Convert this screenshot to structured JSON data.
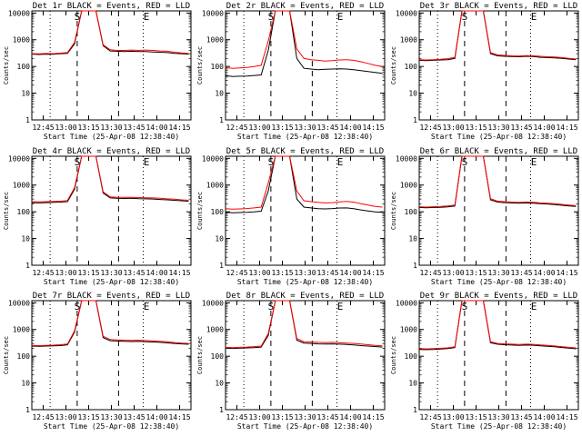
{
  "chart_data": [
    {
      "type": "line",
      "title": "Det 1r BLACK = Events, RED = LLD",
      "xlabel": "Start Time (25-Apr-08 12:38:40)",
      "ylabel": "Counts/sec",
      "scale_y": "log",
      "ylim": [
        1,
        12000
      ],
      "yticks": [
        "1",
        "10",
        "100",
        "1000",
        "10000"
      ],
      "xticks": [
        "12:45",
        "13:00",
        "13:15",
        "13:30",
        "13:45",
        "14:00",
        "14:15"
      ],
      "markers": [
        "S",
        "E"
      ],
      "series": [
        {
          "color": "#000000",
          "values": [
            290,
            280,
            290,
            285,
            300,
            310,
            700,
            12000,
            12000,
            12000,
            600,
            380,
            370,
            360,
            370,
            360,
            360,
            350,
            340,
            330,
            310,
            300,
            290
          ]
        },
        {
          "color": "#ff0000",
          "values": [
            300,
            295,
            305,
            300,
            315,
            330,
            800,
            12000,
            12000,
            12000,
            650,
            420,
            400,
            400,
            410,
            400,
            410,
            400,
            380,
            370,
            340,
            320,
            305
          ]
        }
      ]
    },
    {
      "type": "line",
      "title": "Det 2r BLACK = Events, RED = LLD",
      "xlabel": "Start Time (25-Apr-08 12:38:40)",
      "ylabel": "Counts/sec",
      "scale_y": "log",
      "ylim": [
        1,
        12000
      ],
      "yticks": [
        "1",
        "10",
        "100",
        "1000",
        "10000"
      ],
      "xticks": [
        "12:45",
        "13:00",
        "13:15",
        "13:30",
        "13:45",
        "14:00",
        "14:15"
      ],
      "markers": [
        "S",
        "E"
      ],
      "series": [
        {
          "color": "#000000",
          "values": [
            45,
            42,
            43,
            44,
            46,
            48,
            400,
            12000,
            12000,
            12000,
            200,
            85,
            80,
            75,
            78,
            80,
            82,
            80,
            75,
            70,
            65,
            60,
            55
          ]
        },
        {
          "color": "#ff0000",
          "values": [
            90,
            85,
            88,
            92,
            100,
            110,
            900,
            12000,
            12000,
            12000,
            450,
            200,
            180,
            170,
            160,
            165,
            175,
            180,
            170,
            150,
            130,
            110,
            100
          ]
        }
      ]
    },
    {
      "type": "line",
      "title": "Det 3r BLACK = Events, RED = LLD",
      "xlabel": "Start Time (25-Apr-08 12:38:40)",
      "ylabel": "Counts/sec",
      "scale_y": "log",
      "ylim": [
        1,
        12000
      ],
      "yticks": [
        "1",
        "10",
        "100",
        "1000",
        "10000"
      ],
      "xticks": [
        "12:45",
        "13:00",
        "13:15",
        "13:30",
        "13:45",
        "14:00",
        "14:15"
      ],
      "markers": [
        "S",
        "E"
      ],
      "series": [
        {
          "color": "#000000",
          "values": [
            170,
            165,
            170,
            175,
            180,
            200,
            12000,
            12000,
            12000,
            12000,
            300,
            250,
            240,
            235,
            230,
            240,
            235,
            220,
            215,
            210,
            200,
            190,
            180
          ]
        },
        {
          "color": "#ff0000",
          "values": [
            180,
            175,
            180,
            185,
            195,
            220,
            12000,
            12000,
            12000,
            12000,
            330,
            270,
            260,
            250,
            245,
            255,
            250,
            240,
            230,
            225,
            215,
            200,
            190
          ]
        }
      ]
    },
    {
      "type": "line",
      "title": "Det 4r BLACK = Events, RED = LLD",
      "xlabel": "Start Time (25-Apr-08 12:38:40)",
      "ylabel": "Counts/sec",
      "scale_y": "log",
      "ylim": [
        1,
        12000
      ],
      "yticks": [
        "1",
        "10",
        "100",
        "1000",
        "10000"
      ],
      "xticks": [
        "12:45",
        "13:00",
        "13:15",
        "13:30",
        "13:45",
        "14:00",
        "14:15"
      ],
      "markers": [
        "S",
        "E"
      ],
      "series": [
        {
          "color": "#000000",
          "values": [
            220,
            215,
            220,
            225,
            230,
            240,
            700,
            12000,
            12000,
            12000,
            500,
            330,
            320,
            315,
            320,
            310,
            305,
            300,
            290,
            280,
            270,
            260,
            250
          ]
        },
        {
          "color": "#ff0000",
          "values": [
            240,
            235,
            240,
            245,
            250,
            265,
            800,
            12000,
            12000,
            12000,
            560,
            360,
            350,
            345,
            350,
            340,
            335,
            330,
            320,
            305,
            295,
            280,
            270
          ]
        }
      ]
    },
    {
      "type": "line",
      "title": "Det 5r BLACK = Events, RED = LLD",
      "xlabel": "Start Time (25-Apr-08 12:38:40)",
      "ylabel": "Counts/sec",
      "scale_y": "log",
      "ylim": [
        1,
        12000
      ],
      "yticks": [
        "1",
        "10",
        "100",
        "1000",
        "10000"
      ],
      "xticks": [
        "12:45",
        "13:00",
        "13:15",
        "13:30",
        "13:45",
        "14:00",
        "14:15"
      ],
      "markers": [
        "S",
        "E"
      ],
      "series": [
        {
          "color": "#000000",
          "values": [
            95,
            92,
            94,
            96,
            100,
            105,
            600,
            12000,
            12000,
            12000,
            300,
            150,
            140,
            130,
            128,
            132,
            138,
            140,
            130,
            118,
            108,
            100,
            95
          ]
        },
        {
          "color": "#ff0000",
          "values": [
            130,
            125,
            128,
            132,
            140,
            150,
            1200,
            12000,
            12000,
            12000,
            600,
            260,
            240,
            225,
            215,
            220,
            235,
            245,
            230,
            200,
            180,
            160,
            150
          ]
        }
      ]
    },
    {
      "type": "line",
      "title": "Det 6r BLACK = Events, RED = LLD",
      "xlabel": "Start Time (25-Apr-08 12:38:40)",
      "ylabel": "Counts/sec",
      "scale_y": "log",
      "ylim": [
        1,
        12000
      ],
      "yticks": [
        "1",
        "10",
        "100",
        "1000",
        "10000"
      ],
      "xticks": [
        "12:45",
        "13:00",
        "13:15",
        "13:30",
        "13:45",
        "14:00",
        "14:15"
      ],
      "markers": [
        "S",
        "E"
      ],
      "series": [
        {
          "color": "#000000",
          "values": [
            145,
            142,
            145,
            148,
            152,
            165,
            12000,
            12000,
            12000,
            12000,
            280,
            230,
            220,
            215,
            210,
            215,
            210,
            200,
            195,
            185,
            175,
            165,
            160
          ]
        },
        {
          "color": "#ff0000",
          "values": [
            155,
            150,
            155,
            158,
            165,
            180,
            12000,
            12000,
            12000,
            12000,
            310,
            250,
            240,
            230,
            225,
            232,
            228,
            215,
            210,
            200,
            190,
            180,
            170
          ]
        }
      ]
    },
    {
      "type": "line",
      "title": "Det 7r BLACK = Events, RED = LLD",
      "xlabel": "Start Time (25-Apr-08 12:38:40)",
      "ylabel": "Counts/sec",
      "scale_y": "log",
      "ylim": [
        1,
        12000
      ],
      "yticks": [
        "1",
        "10",
        "100",
        "1000",
        "10000"
      ],
      "xticks": [
        "12:45",
        "13:00",
        "13:15",
        "13:30",
        "13:45",
        "14:00",
        "14:15"
      ],
      "markers": [
        "S",
        "E"
      ],
      "series": [
        {
          "color": "#000000",
          "values": [
            240,
            235,
            240,
            245,
            250,
            265,
            800,
            12000,
            12000,
            12000,
            500,
            380,
            370,
            360,
            355,
            360,
            350,
            340,
            330,
            315,
            300,
            290,
            280
          ]
        },
        {
          "color": "#ff0000",
          "values": [
            255,
            250,
            255,
            260,
            270,
            285,
            900,
            12000,
            12000,
            12000,
            560,
            420,
            405,
            395,
            390,
            395,
            385,
            370,
            360,
            345,
            325,
            310,
            300
          ]
        }
      ]
    },
    {
      "type": "line",
      "title": "Det 8r BLACK = Events, RED = LLD",
      "xlabel": "Start Time (25-Apr-08 12:38:40)",
      "ylabel": "Counts/sec",
      "scale_y": "log",
      "ylim": [
        1,
        12000
      ],
      "yticks": [
        "1",
        "10",
        "100",
        "1000",
        "10000"
      ],
      "xticks": [
        "12:45",
        "13:00",
        "13:15",
        "13:30",
        "13:45",
        "14:00",
        "14:15"
      ],
      "markers": [
        "S",
        "E"
      ],
      "series": [
        {
          "color": "#000000",
          "values": [
            200,
            195,
            200,
            205,
            210,
            220,
            600,
            12000,
            12000,
            12000,
            400,
            310,
            300,
            290,
            285,
            290,
            282,
            275,
            265,
            250,
            240,
            230,
            220
          ]
        },
        {
          "color": "#ff0000",
          "values": [
            215,
            210,
            215,
            220,
            228,
            240,
            700,
            12000,
            12000,
            12000,
            460,
            350,
            340,
            330,
            325,
            330,
            320,
            310,
            300,
            285,
            270,
            255,
            245
          ]
        }
      ]
    },
    {
      "type": "line",
      "title": "Det 9r BLACK = Events, RED = LLD",
      "xlabel": "Start Time (25-Apr-08 12:38:40)",
      "ylabel": "Counts/sec",
      "scale_y": "log",
      "ylim": [
        1,
        12000
      ],
      "yticks": [
        "1",
        "10",
        "100",
        "1000",
        "10000"
      ],
      "xticks": [
        "12:45",
        "13:00",
        "13:15",
        "13:30",
        "13:45",
        "14:00",
        "14:15"
      ],
      "markers": [
        "S",
        "E"
      ],
      "series": [
        {
          "color": "#000000",
          "values": [
            180,
            176,
            180,
            185,
            192,
            210,
            12000,
            12000,
            12000,
            12000,
            320,
            280,
            270,
            262,
            255,
            262,
            258,
            245,
            235,
            225,
            212,
            200,
            190
          ]
        },
        {
          "color": "#ff0000",
          "values": [
            192,
            188,
            192,
            198,
            205,
            225,
            12000,
            12000,
            12000,
            12000,
            350,
            300,
            290,
            282,
            275,
            282,
            278,
            265,
            255,
            242,
            228,
            215,
            205
          ]
        }
      ]
    }
  ]
}
